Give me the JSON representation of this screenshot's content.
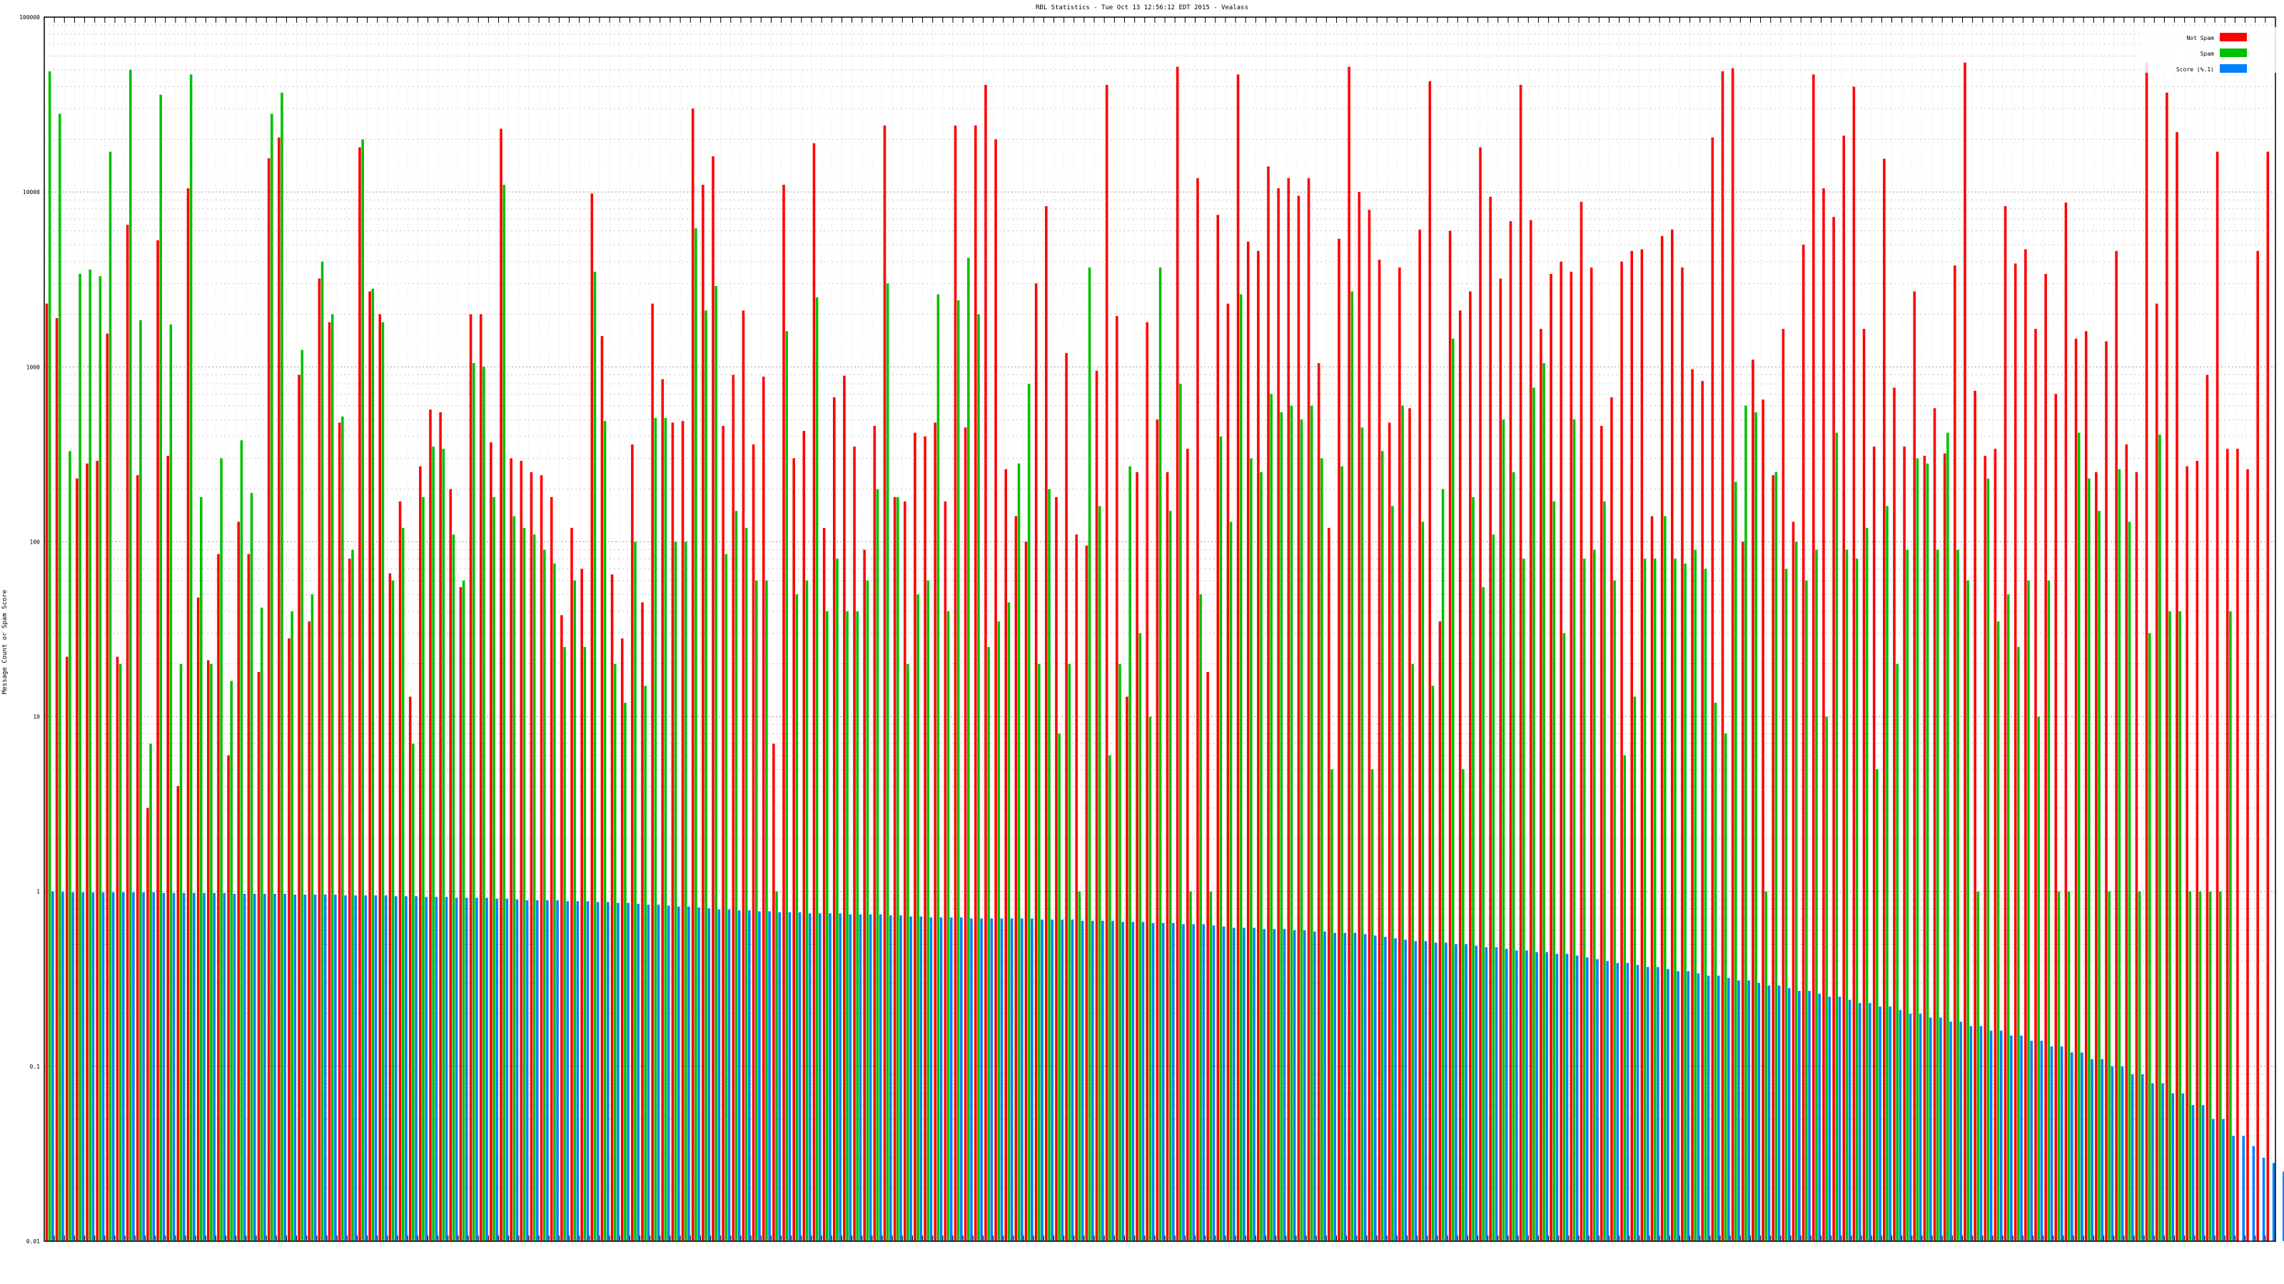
{
  "chart_data": {
    "type": "bar",
    "title": "RBL Statistics - Tue Oct 13 12:56:12 EDT 2015 - Vealass",
    "ylabel": "Message Count or Spam Score",
    "xlabel": "",
    "scale": "log",
    "ylim": [
      0.01,
      100000
    ],
    "yticks": [
      "0.01",
      "0.1",
      "1",
      "10",
      "100",
      "1000",
      "10000",
      "100000"
    ],
    "grid": true,
    "legend_position": "top-right",
    "legend": [
      {
        "name": "Not Spam",
        "color": "#ff0000"
      },
      {
        "name": "Spam",
        "color": "#00c000"
      },
      {
        "name": "Score (%.1)",
        "color": "#0080ff"
      }
    ],
    "series": [
      {
        "name": "Not Spam",
        "color": "#ff0000",
        "values": [
          2300,
          1900,
          22,
          230,
          280,
          290,
          1550,
          22,
          6500,
          240,
          3,
          5300,
          310,
          4,
          10500,
          48,
          21,
          85,
          6,
          130,
          85,
          18,
          15600,
          20500,
          28,
          900,
          35,
          3200,
          1800,
          480,
          80,
          18000,
          2700,
          2000,
          66,
          170,
          13,
          270,
          570,
          550,
          200,
          55,
          2000,
          2000,
          370,
          23000,
          300,
          290,
          250,
          240,
          180,
          38,
          120,
          70,
          9800,
          1500,
          65,
          28,
          360,
          45,
          2300,
          850,
          480,
          490,
          30000,
          11000,
          16000,
          460,
          900,
          2100,
          360,
          880,
          7,
          11000,
          300,
          430,
          19000,
          120,
          670,
          890,
          350,
          90,
          460,
          24000,
          180,
          170,
          420,
          400,
          480,
          170,
          24000,
          450,
          24000,
          41000,
          20000,
          260,
          140,
          100,
          3000,
          8300,
          180,
          1200,
          110,
          95,
          950,
          41000,
          1950,
          13,
          250,
          1800,
          500,
          250,
          52000,
          340,
          12000,
          18,
          7400,
          2300,
          47000,
          5200,
          4600,
          14000,
          10500,
          12000,
          9500,
          12000,
          1050,
          120,
          5400,
          52000,
          10000,
          7900,
          4100,
          480,
          3700,
          580,
          6100,
          43000,
          35,
          6000,
          2100,
          2700,
          18000,
          9400,
          3200,
          6800,
          41000,
          6900,
          1650,
          3400,
          4000,
          3500,
          8800,
          3700,
          460,
          670,
          4000,
          4600,
          4700,
          140,
          5600,
          6100,
          3700,
          970,
          830,
          20500,
          49000,
          51000,
          100,
          1100,
          650,
          240,
          1650,
          130,
          5000,
          47000,
          10500,
          7200,
          21000,
          40000,
          1650,
          350,
          15500,
          760,
          350,
          2700,
          310,
          580,
          320,
          3800,
          55000,
          730,
          310,
          340,
          8300,
          3900,
          4700,
          1650,
          3400,
          700,
          8700,
          1450,
          1600,
          250,
          1400,
          4600,
          360,
          250,
          55000,
          2300,
          37000,
          22000,
          270,
          290,
          900,
          17000,
          340,
          340,
          260,
          4600,
          17000
        ],
        "label_note": ""
      },
      {
        "name": "Spam",
        "color": "#00c000",
        "values": [
          49000,
          28000,
          330,
          3400,
          3600,
          3300,
          17000,
          20,
          50000,
          1850,
          7,
          36000,
          1750,
          20,
          47000,
          180,
          20,
          300,
          16,
          380,
          190,
          42,
          28000,
          37000,
          40,
          1250,
          50,
          4000,
          2000,
          520,
          90,
          20000,
          2800,
          1800,
          60,
          120,
          7,
          180,
          350,
          340,
          110,
          60,
          1050,
          1000,
          180,
          11000,
          140,
          120,
          110,
          90,
          75,
          25,
          60,
          25,
          3500,
          490,
          20,
          12,
          100,
          15,
          510,
          510,
          100,
          100,
          6200,
          2100,
          2900,
          85,
          150,
          120,
          60,
          60,
          1,
          1600,
          50,
          60,
          2500,
          40,
          80,
          40,
          40,
          60,
          200,
          3000,
          180,
          20,
          50,
          60,
          2600,
          40,
          2400,
          4200,
          2000,
          25,
          35,
          45,
          280,
          800,
          20,
          200,
          8,
          20,
          1,
          3700,
          160,
          6,
          20,
          270,
          30,
          10,
          3700,
          150,
          800,
          1,
          50,
          1,
          400,
          130,
          2600,
          300,
          250,
          700,
          550,
          600,
          500,
          600,
          300,
          5,
          270,
          2700,
          450,
          5,
          330,
          160,
          600,
          20,
          130,
          15,
          200,
          1450,
          5,
          180,
          55,
          110,
          500,
          250,
          80,
          760,
          1050,
          170,
          30,
          500,
          80,
          90,
          170,
          60,
          6,
          13,
          80,
          80,
          140,
          80,
          75,
          90,
          70,
          12,
          8,
          220,
          600,
          550,
          1,
          250,
          70,
          100,
          60,
          90,
          10,
          420,
          90,
          80,
          120,
          5,
          160,
          20,
          90,
          300,
          280,
          90,
          420,
          90,
          60,
          1,
          230,
          35,
          50,
          25,
          60,
          10,
          60,
          1,
          1,
          420,
          230,
          150,
          1,
          260,
          130,
          1,
          30,
          410,
          40,
          40,
          1,
          1,
          1,
          1,
          40
        ]
      },
      {
        "name": "Score (%.1)",
        "color": "#0080ff",
        "values": [
          1.0,
          0.995,
          0.99,
          0.99,
          0.99,
          0.99,
          0.99,
          0.99,
          0.99,
          0.99,
          0.99,
          0.98,
          0.98,
          0.98,
          0.98,
          0.98,
          0.98,
          0.98,
          0.97,
          0.97,
          0.97,
          0.97,
          0.97,
          0.97,
          0.96,
          0.96,
          0.96,
          0.96,
          0.96,
          0.95,
          0.95,
          0.95,
          0.95,
          0.95,
          0.94,
          0.94,
          0.94,
          0.93,
          0.93,
          0.93,
          0.92,
          0.92,
          0.92,
          0.92,
          0.91,
          0.91,
          0.9,
          0.89,
          0.89,
          0.89,
          0.89,
          0.88,
          0.88,
          0.88,
          0.87,
          0.87,
          0.86,
          0.86,
          0.85,
          0.84,
          0.84,
          0.83,
          0.82,
          0.82,
          0.81,
          0.8,
          0.79,
          0.79,
          0.78,
          0.78,
          0.77,
          0.77,
          0.76,
          0.76,
          0.76,
          0.75,
          0.75,
          0.75,
          0.75,
          0.74,
          0.74,
          0.74,
          0.74,
          0.73,
          0.73,
          0.72,
          0.72,
          0.71,
          0.71,
          0.71,
          0.71,
          0.7,
          0.7,
          0.7,
          0.7,
          0.7,
          0.7,
          0.7,
          0.69,
          0.69,
          0.69,
          0.69,
          0.68,
          0.68,
          0.68,
          0.68,
          0.67,
          0.67,
          0.67,
          0.66,
          0.66,
          0.66,
          0.65,
          0.65,
          0.65,
          0.64,
          0.63,
          0.62,
          0.62,
          0.62,
          0.61,
          0.61,
          0.61,
          0.6,
          0.6,
          0.59,
          0.59,
          0.58,
          0.58,
          0.58,
          0.57,
          0.56,
          0.55,
          0.54,
          0.53,
          0.52,
          0.52,
          0.51,
          0.51,
          0.5,
          0.5,
          0.49,
          0.48,
          0.48,
          0.47,
          0.46,
          0.46,
          0.45,
          0.45,
          0.44,
          0.44,
          0.43,
          0.42,
          0.41,
          0.4,
          0.39,
          0.39,
          0.38,
          0.37,
          0.37,
          0.36,
          0.35,
          0.35,
          0.34,
          0.33,
          0.33,
          0.32,
          0.31,
          0.31,
          0.3,
          0.29,
          0.29,
          0.28,
          0.27,
          0.27,
          0.26,
          0.25,
          0.25,
          0.24,
          0.23,
          0.23,
          0.22,
          0.22,
          0.21,
          0.2,
          0.2,
          0.19,
          0.19,
          0.18,
          0.18,
          0.17,
          0.17,
          0.16,
          0.16,
          0.15,
          0.15,
          0.14,
          0.14,
          0.13,
          0.13,
          0.12,
          0.12,
          0.11,
          0.11,
          0.1,
          0.1,
          0.09,
          0.09,
          0.08,
          0.08,
          0.07,
          0.07,
          0.06,
          0.06,
          0.05,
          0.05,
          0.04,
          0.04,
          0.035,
          0.03,
          0.028,
          0.025,
          0.022,
          0.02,
          0.018,
          0.016,
          0.014,
          0.013,
          0.012
        ]
      }
    ]
  }
}
